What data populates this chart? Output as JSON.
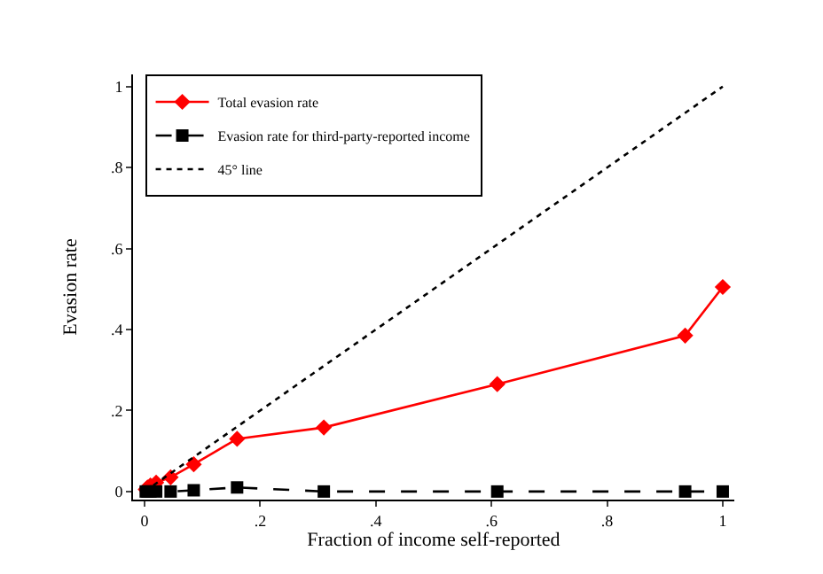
{
  "chart_data": {
    "type": "line",
    "xlabel": "Fraction of income self-reported",
    "ylabel": "Evasion rate",
    "xlim": [
      -0.02,
      1.02
    ],
    "ylim": [
      -0.02,
      1.03
    ],
    "xticks": [
      0,
      {
        "value": 0.2,
        "label": ".2"
      },
      {
        "value": 0.4,
        "label": ".4"
      },
      {
        "value": 0.6,
        "label": ".6"
      },
      {
        "value": 0.8,
        "label": ".8"
      },
      1
    ],
    "yticks": [
      0,
      {
        "value": 0.2,
        "label": ".2"
      },
      {
        "value": 0.4,
        "label": ".4"
      },
      {
        "value": 0.6,
        "label": ".6"
      },
      {
        "value": 0.8,
        "label": ".8"
      },
      1
    ],
    "grid": false,
    "legend": "top left",
    "series": [
      {
        "name": "Total evasion rate",
        "color": "#ff0000",
        "marker": "diamond",
        "line_style": "solid",
        "x": [
          0.002,
          0.005,
          0.01,
          0.02,
          0.045,
          0.085,
          0.16,
          0.31,
          0.61,
          0.935,
          1.0
        ],
        "values": [
          0.005,
          0.01,
          0.015,
          0.022,
          0.035,
          0.067,
          0.13,
          0.158,
          0.265,
          0.385,
          0.505
        ]
      },
      {
        "name": "Evasion rate for third-party-reported income",
        "color": "#000000",
        "marker": "square",
        "line_style": "dashed",
        "x": [
          0.002,
          0.005,
          0.01,
          0.02,
          0.045,
          0.085,
          0.16,
          0.31,
          0.61,
          0.935,
          1.0
        ],
        "values": [
          0,
          0,
          0,
          0,
          0,
          0.003,
          0.01,
          0,
          0,
          0,
          0
        ]
      },
      {
        "name": "45° line",
        "color": "#000000",
        "marker": "none",
        "line_style": "dotted",
        "x": [
          0,
          1
        ],
        "values": [
          0,
          1
        ]
      }
    ]
  }
}
